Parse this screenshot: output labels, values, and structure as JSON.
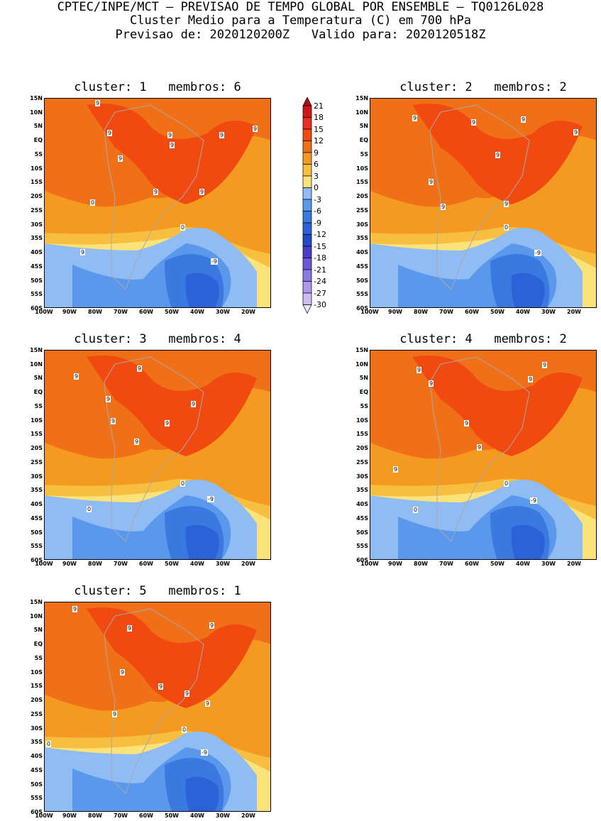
{
  "header": {
    "line1": "CPTEC/INPE/MCT – PREVISAO DE TEMPO GLOBAL POR ENSEMBLE – TQ0126L028",
    "line2": "Cluster Medio para a Temperatura (C) em 700 hPa",
    "line3": "Previsao de: 2020120200Z   Valido para: 2020120518Z"
  },
  "axes": {
    "lat_labels": [
      "15N",
      "10N",
      "5N",
      "EQ",
      "5S",
      "10S",
      "15S",
      "20S",
      "25S",
      "30S",
      "35S",
      "40S",
      "45S",
      "50S",
      "55S",
      "60S"
    ],
    "lon_labels": [
      "100W",
      "90W",
      "80W",
      "70W",
      "60W",
      "50W",
      "40W",
      "30W",
      "20W"
    ]
  },
  "colorbar": {
    "labels": [
      "21",
      "18",
      "15",
      "12",
      "9",
      "6",
      "3",
      "0",
      "-3",
      "-6",
      "-9",
      "-12",
      "-15",
      "-18",
      "-21",
      "-24",
      "-27",
      "-30"
    ],
    "colors": [
      "#b01010",
      "#d01818",
      "#e83020",
      "#f04a10",
      "#f07018",
      "#f59a20",
      "#f7bf40",
      "#fbe37a",
      "#90bcf4",
      "#5a98ec",
      "#3a7ae0",
      "#2c62d8",
      "#2448c8",
      "#4a3ec8",
      "#6a58d8",
      "#8c78e4",
      "#ac98ec",
      "#ccbcf4",
      "#ece4fc"
    ]
  },
  "panels": [
    {
      "title": "cluster: 1   membros: 6",
      "contour_labels": [
        "9",
        "9",
        "9",
        "9",
        "9",
        "9",
        "9",
        "9",
        "9",
        "0",
        "-9",
        "0",
        "9"
      ]
    },
    {
      "title": "cluster: 2   membros: 2",
      "contour_labels": [
        "9",
        "9",
        "9",
        "9",
        "9",
        "9",
        "9",
        "0",
        "-9",
        "9"
      ]
    },
    {
      "title": "cluster: 3   membros: 4",
      "contour_labels": [
        "9",
        "9",
        "9",
        "9",
        "9",
        "9",
        "0",
        "-9",
        "0",
        "9"
      ]
    },
    {
      "title": "cluster: 4   membros: 2",
      "contour_labels": [
        "9",
        "9",
        "9",
        "9",
        "9",
        "9",
        "9",
        "0",
        "-9",
        "0"
      ]
    },
    {
      "title": "cluster: 5   membros: 1",
      "contour_labels": [
        "9",
        "9",
        "9",
        "9",
        "9",
        "9",
        "9",
        "9",
        "0",
        "-9",
        "0"
      ]
    }
  ]
}
